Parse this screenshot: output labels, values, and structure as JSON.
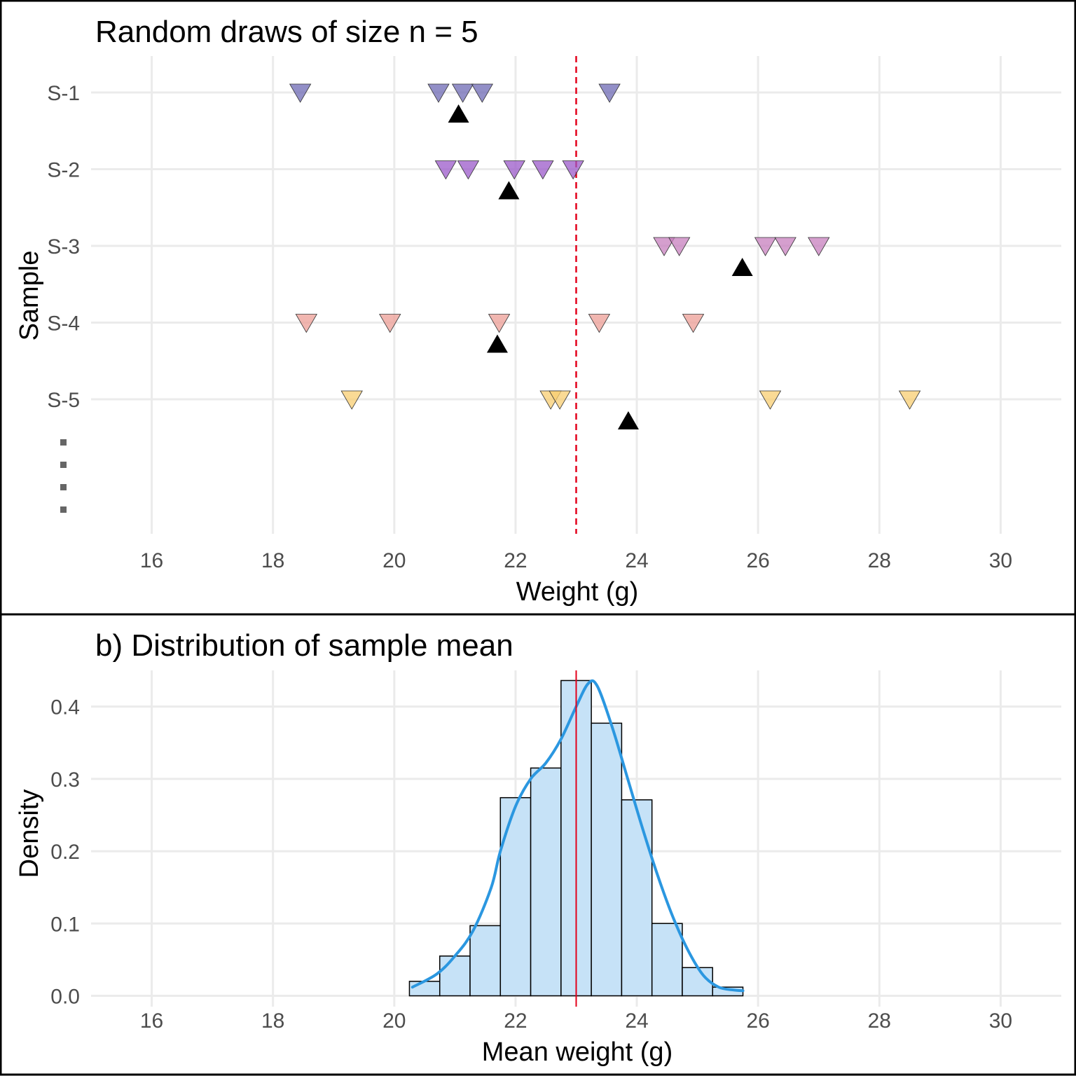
{
  "colors": {
    "grid": "#ebebeb",
    "ref_line": "#e3001b",
    "mean_marker": "#000000",
    "hist_fill": "#c6e2f7",
    "density_curve": "#2b97e0",
    "samples": [
      "#6e6ab4",
      "#9b59c9",
      "#c77fbe",
      "#ec9d96",
      "#f8cd72"
    ]
  },
  "chart_data": [
    {
      "type": "scatter",
      "title": "Random draws of size n = 5",
      "xlabel": "Weight (g)",
      "ylabel": "Sample",
      "xlim": [
        15,
        31
      ],
      "x_ticks": [
        16,
        18,
        20,
        22,
        24,
        26,
        28,
        30
      ],
      "grid": true,
      "reference_line": {
        "x": 23,
        "style": "dashed"
      },
      "ellipsis_marker": true,
      "series": [
        {
          "name": "S-1",
          "values": [
            18.45,
            20.73,
            21.13,
            21.45,
            23.55
          ],
          "mean": 21.06
        },
        {
          "name": "S-2",
          "values": [
            20.85,
            21.22,
            21.98,
            22.45,
            22.95
          ],
          "mean": 21.89
        },
        {
          "name": "S-3",
          "values": [
            24.45,
            24.7,
            26.12,
            26.45,
            27.0
          ],
          "mean": 25.74
        },
        {
          "name": "S-4",
          "values": [
            18.55,
            19.93,
            21.73,
            23.38,
            24.93
          ],
          "mean": 21.7
        },
        {
          "name": "S-5",
          "values": [
            19.3,
            22.58,
            22.73,
            26.2,
            28.5
          ],
          "mean": 23.86
        }
      ]
    },
    {
      "type": "bar",
      "title": "b) Distribution of sample mean",
      "xlabel": "Mean weight (g)",
      "ylabel": "Density",
      "xlim": [
        15,
        31
      ],
      "ylim": [
        -0.015,
        0.45
      ],
      "x_ticks": [
        16,
        18,
        20,
        22,
        24,
        26,
        28,
        30
      ],
      "y_ticks": [
        0.0,
        0.1,
        0.2,
        0.3,
        0.4
      ],
      "y_tick_labels": [
        "0.0",
        "0.1",
        "0.2",
        "0.3",
        "0.4"
      ],
      "grid": true,
      "reference_line": {
        "x": 23,
        "style": "solid"
      },
      "bin_edges": [
        20.25,
        20.75,
        21.25,
        21.75,
        22.25,
        22.75,
        23.25,
        23.75,
        24.25,
        24.75,
        25.25,
        25.75
      ],
      "values": [
        0.02,
        0.055,
        0.097,
        0.274,
        0.315,
        0.436,
        0.377,
        0.271,
        0.1,
        0.039,
        0.012
      ],
      "density_curve": {
        "x": [
          20.3,
          20.7,
          21.0,
          21.3,
          21.6,
          21.75,
          22.0,
          22.25,
          22.5,
          22.75,
          23.0,
          23.2,
          23.35,
          23.6,
          23.85,
          24.1,
          24.35,
          24.6,
          24.85,
          25.1,
          25.35,
          25.6,
          25.75
        ],
        "y": [
          0.012,
          0.03,
          0.055,
          0.09,
          0.15,
          0.2,
          0.262,
          0.3,
          0.322,
          0.355,
          0.4,
          0.432,
          0.428,
          0.37,
          0.3,
          0.23,
          0.165,
          0.108,
          0.062,
          0.028,
          0.012,
          0.008,
          0.007
        ]
      }
    }
  ]
}
